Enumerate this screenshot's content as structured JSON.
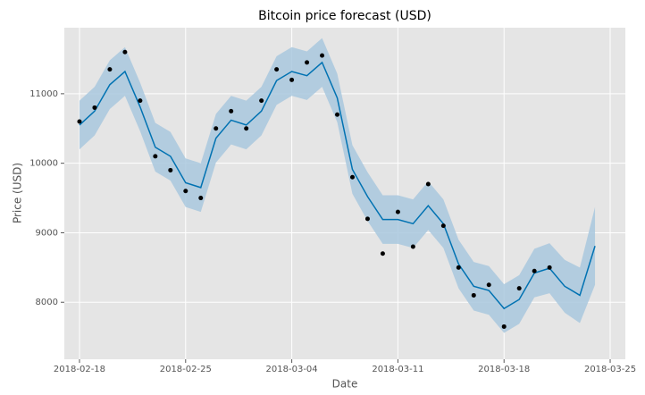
{
  "chart_data": {
    "type": "forecast",
    "title": "Bitcoin price forecast (USD)",
    "x_label": "Date",
    "y_label": "Price (USD)",
    "x": [
      "2018-02-18",
      "2018-02-19",
      "2018-02-20",
      "2018-02-21",
      "2018-02-22",
      "2018-02-23",
      "2018-02-24",
      "2018-02-25",
      "2018-02-26",
      "2018-02-27",
      "2018-02-28",
      "2018-03-01",
      "2018-03-02",
      "2018-03-03",
      "2018-03-04",
      "2018-03-05",
      "2018-03-06",
      "2018-03-07",
      "2018-03-08",
      "2018-03-09",
      "2018-03-10",
      "2018-03-11",
      "2018-03-12",
      "2018-03-13",
      "2018-03-14",
      "2018-03-15",
      "2018-03-16",
      "2018-03-17",
      "2018-03-18",
      "2018-03-19",
      "2018-03-20",
      "2018-03-21",
      "2018-03-22",
      "2018-03-23",
      "2018-03-24"
    ],
    "observed": {
      "color": "#000000",
      "values": [
        10600,
        10800,
        11350,
        11600,
        10900,
        10100,
        9900,
        9600,
        9500,
        10500,
        10750,
        10500,
        10900,
        11350,
        11200,
        11450,
        11550,
        10700,
        9800,
        9200,
        8700,
        9300,
        8800,
        9700,
        9100,
        8500,
        8100,
        8250,
        7650,
        8200,
        8450,
        8500,
        null,
        null,
        null
      ]
    },
    "forecast": {
      "color": "#0072b2",
      "band_color": "#a9c8de",
      "values": [
        10550,
        10750,
        11130,
        11320,
        10810,
        10230,
        10100,
        9720,
        9650,
        10360,
        10620,
        10550,
        10750,
        11190,
        11320,
        11260,
        11450,
        10940,
        9910,
        9520,
        9190,
        9190,
        9130,
        9390,
        9130,
        8550,
        8230,
        8170,
        7910,
        8040,
        8420,
        8490,
        8230,
        8100,
        8810
      ],
      "lower": [
        10200,
        10400,
        10780,
        10970,
        10460,
        9880,
        9750,
        9370,
        9300,
        10010,
        10270,
        10200,
        10400,
        10840,
        10970,
        10910,
        11100,
        10590,
        9560,
        9170,
        8840,
        8840,
        8780,
        9040,
        8780,
        8200,
        7880,
        7820,
        7560,
        7690,
        8070,
        8130,
        7850,
        7700,
        8250
      ],
      "upper": [
        10900,
        11100,
        11480,
        11670,
        11160,
        10580,
        10450,
        10070,
        10000,
        10710,
        10970,
        10900,
        11100,
        11540,
        11670,
        11610,
        11800,
        11290,
        10260,
        9870,
        9540,
        9540,
        9480,
        9740,
        9480,
        8900,
        8580,
        8520,
        8260,
        8390,
        8770,
        8850,
        8610,
        8500,
        9370
      ]
    },
    "xlim": [
      "2018-02-17",
      "2018-03-26"
    ],
    "xticks": [
      "2018-02-18",
      "2018-02-25",
      "2018-03-04",
      "2018-03-11",
      "2018-03-18",
      "2018-03-25"
    ],
    "ylim": [
      7180,
      11950
    ],
    "yticks": [
      8000,
      9000,
      10000,
      11000
    ],
    "grid": true
  }
}
